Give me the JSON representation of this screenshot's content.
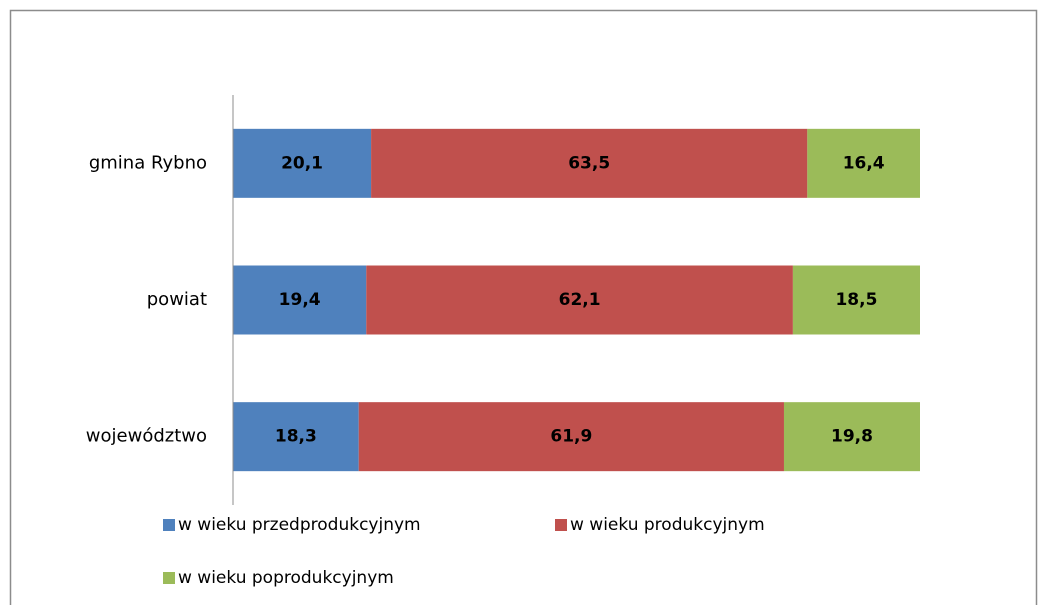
{
  "chart_data": {
    "type": "stacked_barh",
    "categories": [
      "gmina Rybno",
      "powiat",
      "województwo"
    ],
    "series": [
      {
        "name": "w wieku przedprodukcyjnym",
        "color": "#4f81bd",
        "values": [
          20.1,
          19.4,
          18.3
        ],
        "value_labels": [
          "20,1",
          "19,4",
          "18,3"
        ]
      },
      {
        "name": "w wieku produkcyjnym",
        "color": "#c0504d",
        "values": [
          63.5,
          62.1,
          61.9
        ],
        "value_labels": [
          "63,5",
          "62,1",
          "61,9"
        ]
      },
      {
        "name": "w wieku poprodukcyjnym",
        "color": "#9bbb59",
        "values": [
          16.4,
          18.5,
          19.8
        ],
        "value_labels": [
          "16,4",
          "18,5",
          "19,8"
        ]
      }
    ],
    "xlim": [
      0,
      100
    ],
    "legend": "bottom"
  }
}
